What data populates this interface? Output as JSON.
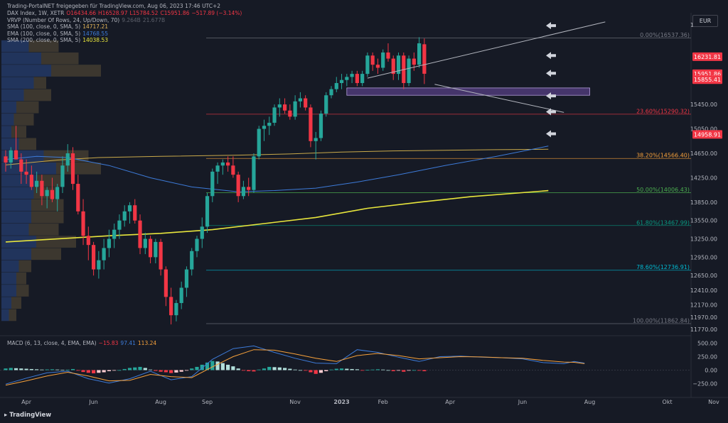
{
  "watermark": "Trading-PortalNET freigegeben für TradingView.com, Aug 06, 2023 17:46 UTC+2",
  "currency": "EUR",
  "footer": "TradingView",
  "legend": [
    {
      "name": "DAX Index, 1W, XETR",
      "vals": [
        "O16434.66",
        "H16528.97",
        "L15784.52",
        "C15951.86",
        "−517.89 (−3.14%)"
      ],
      "color": "#f23645"
    },
    {
      "name": "VRVP (Number Of Rows, 24, Up/Down, 70)",
      "vals": [
        "9.264B",
        "21.677B"
      ],
      "color": "#5d606b"
    },
    {
      "name": "SMA (100, close, 0, SMA, 5)",
      "vals": [
        "14717.21"
      ],
      "color": "#e6b85c"
    },
    {
      "name": "EMA (100, close, 0, SMA, 5)",
      "vals": [
        "14768.55"
      ],
      "color": "#3d7bd9"
    },
    {
      "name": "SMA (200, close, 0, SMA, 5)",
      "vals": [
        "14038.53"
      ],
      "color": "#e8e63c"
    }
  ],
  "macd_legend": {
    "name": "MACD (6, 13, close, 4, EMA, EMA)",
    "vals": [
      "−15.83",
      "97.41",
      "113.24"
    ],
    "colors": [
      "#f23645",
      "#3d7bd9",
      "#f7a13b"
    ]
  },
  "colors": {
    "up": "#26a69a",
    "down": "#f23645",
    "sma100": "#c9a94a",
    "ema100": "#3d7bd9",
    "sma200": "#e8e63c",
    "channel": "#b2b5be",
    "zone": "#7e57c2"
  },
  "chart_data": {
    "type": "candlestick",
    "symbol": "DAX Index, 1W, XETR",
    "y_ticks": [
      16750,
      16231.81,
      15951.86,
      15855.41,
      15450,
      15050,
      14958.91,
      14650,
      14250,
      13850,
      13550,
      13250,
      12950,
      12650,
      12410,
      12170,
      11970,
      11770
    ],
    "y_range": [
      11700,
      16950
    ],
    "x_labels": [
      "Apr",
      "Jun",
      "Aug",
      "Sep",
      "Nov",
      "2023",
      "Feb",
      "Apr",
      "Jun",
      "Aug",
      "Okt",
      "Nov"
    ],
    "x_label_weeks": [
      4,
      17,
      30,
      39,
      56,
      65,
      73,
      86,
      100,
      113,
      128,
      137
    ],
    "price_badges": [
      {
        "price": 16231.81,
        "label": "16231.81"
      },
      {
        "price": 15951.86,
        "label": "15951.86"
      },
      {
        "price": 15855.41,
        "label": "15855.41"
      },
      {
        "price": 14958.91,
        "label": "14958.91"
      }
    ],
    "fib_levels": [
      {
        "label": "0.00%(16537.36)",
        "price": 16537.36,
        "color": "#787b86"
      },
      {
        "label": "23.60%(15290.32)",
        "price": 15290.32,
        "color": "#f23645"
      },
      {
        "label": "38.20%(14566.40)",
        "price": 14566.4,
        "color": "#f7a13b"
      },
      {
        "label": "50.00%(14006.43)",
        "price": 14006.43,
        "color": "#4caf50"
      },
      {
        "label": "61.80%(13467.99)",
        "price": 13467.99,
        "color": "#089981"
      },
      {
        "label": "78.60%(12736.91)",
        "price": 12736.91,
        "color": "#00bcd4"
      },
      {
        "label": "100.00%(11862.84)",
        "price": 11862.84,
        "color": "#787b86"
      }
    ],
    "candles": [
      [
        14600,
        14700,
        14350,
        14500
      ],
      [
        14500,
        14750,
        14400,
        14700
      ],
      [
        14700,
        15100,
        14550,
        14550
      ],
      [
        14550,
        14650,
        14150,
        14350
      ],
      [
        14350,
        14550,
        14150,
        14300
      ],
      [
        14300,
        14450,
        14050,
        14100
      ],
      [
        14100,
        14350,
        14000,
        14200
      ],
      [
        14200,
        14300,
        13800,
        13950
      ],
      [
        13950,
        14100,
        13750,
        14050
      ],
      [
        14050,
        14250,
        13850,
        13900
      ],
      [
        13900,
        14150,
        13700,
        14100
      ],
      [
        14100,
        14600,
        14000,
        14450
      ],
      [
        14450,
        14800,
        14350,
        14650
      ],
      [
        14650,
        14750,
        14050,
        14150
      ],
      [
        14150,
        14300,
        13650,
        13700
      ],
      [
        13700,
        13900,
        13150,
        13300
      ],
      [
        13300,
        13450,
        12900,
        13150
      ],
      [
        13150,
        13200,
        12650,
        12750
      ],
      [
        12750,
        13050,
        12600,
        12900
      ],
      [
        12900,
        13250,
        12750,
        13100
      ],
      [
        13100,
        13400,
        12950,
        13250
      ],
      [
        13250,
        13500,
        13100,
        13400
      ],
      [
        13400,
        13650,
        13250,
        13550
      ],
      [
        13550,
        13800,
        13450,
        13700
      ],
      [
        13700,
        13850,
        13500,
        13800
      ],
      [
        13800,
        13900,
        13500,
        13550
      ],
      [
        13550,
        13650,
        13000,
        13100
      ],
      [
        13100,
        13350,
        13000,
        13250
      ],
      [
        13250,
        13300,
        12850,
        12950
      ],
      [
        12950,
        13250,
        12850,
        13200
      ],
      [
        13200,
        13250,
        12650,
        12750
      ],
      [
        12750,
        12800,
        12150,
        12300
      ],
      [
        12300,
        12450,
        11850,
        12000
      ],
      [
        12000,
        12250,
        11900,
        12200
      ],
      [
        12200,
        12550,
        12100,
        12450
      ],
      [
        12450,
        12800,
        12300,
        12750
      ],
      [
        12750,
        13100,
        12650,
        13050
      ],
      [
        13050,
        13300,
        12950,
        13250
      ],
      [
        13250,
        13600,
        13100,
        13450
      ],
      [
        13450,
        14000,
        13350,
        13950
      ],
      [
        13950,
        14400,
        13850,
        14350
      ],
      [
        14350,
        14500,
        14150,
        14450
      ],
      [
        14450,
        14550,
        14300,
        14500
      ],
      [
        14500,
        14600,
        14350,
        14450
      ],
      [
        14450,
        14600,
        14250,
        14300
      ],
      [
        14300,
        14350,
        13850,
        13950
      ],
      [
        13950,
        14200,
        13900,
        14100
      ],
      [
        14100,
        14250,
        13950,
        14050
      ],
      [
        14050,
        14650,
        14000,
        14600
      ],
      [
        14600,
        15100,
        14550,
        15050
      ],
      [
        15050,
        15200,
        14850,
        15100
      ],
      [
        15100,
        15250,
        14950,
        15150
      ],
      [
        15150,
        15450,
        15100,
        15400
      ],
      [
        15400,
        15550,
        15250,
        15450
      ],
      [
        15450,
        15550,
        15300,
        15350
      ],
      [
        15350,
        15450,
        15200,
        15250
      ],
      [
        15250,
        15600,
        15200,
        15500
      ],
      [
        15500,
        15650,
        15400,
        15550
      ],
      [
        15550,
        15600,
        15350,
        15400
      ],
      [
        15400,
        15450,
        14750,
        14850
      ],
      [
        14850,
        15000,
        14550,
        14900
      ],
      [
        14900,
        15350,
        14850,
        15300
      ],
      [
        15300,
        15650,
        15250,
        15600
      ],
      [
        15600,
        15750,
        15550,
        15700
      ],
      [
        15700,
        15900,
        15650,
        15800
      ],
      [
        15800,
        15950,
        15700,
        15850
      ],
      [
        15850,
        15950,
        15750,
        15900
      ],
      [
        15900,
        16000,
        15800,
        15950
      ],
      [
        15950,
        16000,
        15750,
        15800
      ],
      [
        15800,
        16000,
        15750,
        15950
      ],
      [
        15950,
        16300,
        15900,
        16250
      ],
      [
        16250,
        16300,
        16000,
        16100
      ],
      [
        16100,
        16200,
        15950,
        16050
      ],
      [
        16050,
        16350,
        16000,
        16300
      ],
      [
        16300,
        16450,
        16150,
        16200
      ],
      [
        16200,
        16250,
        15850,
        15950
      ],
      [
        15950,
        16300,
        15850,
        16250
      ],
      [
        16250,
        16300,
        15700,
        15800
      ],
      [
        15800,
        16250,
        15750,
        16200
      ],
      [
        16200,
        16300,
        16000,
        16100
      ],
      [
        16100,
        16550,
        16050,
        16450
      ],
      [
        16434.66,
        16528.97,
        15784.52,
        15951.86
      ]
    ],
    "sma100": [
      [
        0,
        14460
      ],
      [
        5,
        14500
      ],
      [
        10,
        14540
      ],
      [
        18,
        14580
      ],
      [
        30,
        14600
      ],
      [
        45,
        14620
      ],
      [
        55,
        14640
      ],
      [
        65,
        14670
      ],
      [
        75,
        14690
      ],
      [
        85,
        14700
      ],
      [
        95,
        14710
      ],
      [
        105,
        14717
      ]
    ],
    "ema100": [
      [
        0,
        14550
      ],
      [
        6,
        14600
      ],
      [
        12,
        14580
      ],
      [
        20,
        14450
      ],
      [
        28,
        14250
      ],
      [
        36,
        14100
      ],
      [
        45,
        14020
      ],
      [
        52,
        14040
      ],
      [
        60,
        14080
      ],
      [
        68,
        14180
      ],
      [
        76,
        14300
      ],
      [
        85,
        14450
      ],
      [
        95,
        14600
      ],
      [
        105,
        14769
      ]
    ],
    "sma200": [
      [
        0,
        13200
      ],
      [
        10,
        13250
      ],
      [
        20,
        13300
      ],
      [
        30,
        13340
      ],
      [
        40,
        13400
      ],
      [
        50,
        13500
      ],
      [
        60,
        13600
      ],
      [
        70,
        13750
      ],
      [
        80,
        13850
      ],
      [
        90,
        13940
      ],
      [
        105,
        14039
      ]
    ],
    "channel_upper": [
      [
        70,
        15880
      ],
      [
        116,
        16800
      ]
    ],
    "channel_lower": [
      [
        83,
        15780
      ],
      [
        108,
        15320
      ]
    ],
    "zone": {
      "top": 15720,
      "bottom": 15600,
      "from": 66,
      "to": 113
    },
    "arrows": [
      16740,
      16250,
      15960,
      15590,
      15330,
      14970
    ],
    "volume_profile": [
      {
        "p": 16400,
        "up": 11,
        "down": 23
      },
      {
        "p": 16200,
        "up": 16,
        "down": 31
      },
      {
        "p": 16000,
        "up": 20,
        "down": 40
      },
      {
        "p": 15800,
        "up": 13,
        "down": 18
      },
      {
        "p": 15600,
        "up": 9,
        "down": 20
      },
      {
        "p": 15400,
        "up": 6,
        "down": 15
      },
      {
        "p": 15200,
        "up": 5,
        "down": 13
      },
      {
        "p": 15000,
        "up": 4,
        "down": 10
      },
      {
        "p": 14800,
        "up": 7,
        "down": 14
      },
      {
        "p": 14600,
        "up": 17,
        "down": 35
      },
      {
        "p": 14400,
        "up": 22,
        "down": 40
      },
      {
        "p": 14200,
        "up": 14,
        "down": 24
      },
      {
        "p": 14000,
        "up": 13,
        "down": 22
      },
      {
        "p": 13800,
        "up": 12,
        "down": 25
      },
      {
        "p": 13600,
        "up": 12,
        "down": 25
      },
      {
        "p": 13400,
        "up": 11,
        "down": 23
      },
      {
        "p": 13200,
        "up": 14,
        "down": 30
      },
      {
        "p": 13000,
        "up": 12,
        "down": 24
      },
      {
        "p": 12800,
        "up": 7,
        "down": 12
      },
      {
        "p": 12600,
        "up": 6,
        "down": 10
      },
      {
        "p": 12400,
        "up": 6,
        "down": 11
      },
      {
        "p": 12200,
        "up": 4,
        "down": 8
      },
      {
        "p": 12000,
        "up": 3,
        "down": 6
      }
    ],
    "macd": {
      "y_ticks": [
        500,
        250,
        0,
        -250
      ],
      "y_range": [
        -350,
        600
      ],
      "histogram": [
        30,
        40,
        35,
        30,
        25,
        20,
        15,
        10,
        12,
        15,
        10,
        5,
        8,
        20,
        -10,
        -35,
        -50,
        -60,
        -50,
        -40,
        -20,
        -10,
        0,
        20,
        40,
        50,
        60,
        40,
        10,
        -15,
        -30,
        -40,
        -55,
        -45,
        -30,
        -10,
        30,
        60,
        100,
        140,
        170,
        160,
        130,
        100,
        70,
        30,
        -10,
        -20,
        -25,
        10,
        30,
        60,
        55,
        50,
        40,
        25,
        10,
        0,
        -10,
        -40,
        -70,
        -50,
        -20,
        10,
        25,
        30,
        25,
        20,
        15,
        -5,
        5,
        10,
        15,
        10,
        0,
        -20,
        -10,
        -30,
        -10,
        0,
        -10,
        -20
      ],
      "macd_line": [
        [
          0,
          -260
        ],
        [
          4,
          -150
        ],
        [
          8,
          -50
        ],
        [
          12,
          -20
        ],
        [
          16,
          -160
        ],
        [
          20,
          -240
        ],
        [
          24,
          -160
        ],
        [
          28,
          -20
        ],
        [
          32,
          -180
        ],
        [
          36,
          -120
        ],
        [
          40,
          200
        ],
        [
          44,
          400
        ],
        [
          48,
          450
        ],
        [
          52,
          330
        ],
        [
          56,
          220
        ],
        [
          60,
          130
        ],
        [
          64,
          120
        ],
        [
          68,
          380
        ],
        [
          72,
          330
        ],
        [
          76,
          240
        ],
        [
          80,
          160
        ],
        [
          84,
          250
        ],
        [
          88,
          260
        ],
        [
          92,
          240
        ],
        [
          96,
          230
        ],
        [
          100,
          210
        ],
        [
          104,
          140
        ],
        [
          108,
          120
        ],
        [
          110,
          160
        ],
        [
          112,
          130
        ]
      ],
      "signal_line": [
        [
          0,
          -280
        ],
        [
          4,
          -200
        ],
        [
          8,
          -110
        ],
        [
          12,
          -40
        ],
        [
          16,
          -110
        ],
        [
          20,
          -200
        ],
        [
          24,
          -190
        ],
        [
          28,
          -80
        ],
        [
          32,
          -120
        ],
        [
          36,
          -140
        ],
        [
          40,
          60
        ],
        [
          44,
          250
        ],
        [
          48,
          380
        ],
        [
          52,
          370
        ],
        [
          56,
          300
        ],
        [
          60,
          220
        ],
        [
          64,
          160
        ],
        [
          68,
          270
        ],
        [
          72,
          310
        ],
        [
          76,
          270
        ],
        [
          80,
          210
        ],
        [
          84,
          230
        ],
        [
          88,
          250
        ],
        [
          92,
          245
        ],
        [
          96,
          230
        ],
        [
          100,
          220
        ],
        [
          104,
          180
        ],
        [
          108,
          150
        ],
        [
          110,
          145
        ],
        [
          112,
          120
        ]
      ]
    }
  }
}
